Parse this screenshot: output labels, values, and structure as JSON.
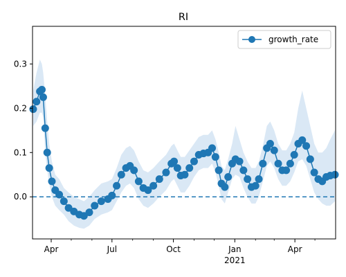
{
  "chart_data": {
    "type": "line",
    "title": "RI",
    "xlabel": "",
    "ylabel": "",
    "x_range": [
      "2020-03-04",
      "2021-06-01"
    ],
    "ylim": [
      -0.095,
      0.385
    ],
    "x_ticks": [
      {
        "date": "2020-04-01",
        "label": "Apr",
        "year_label": ""
      },
      {
        "date": "2020-07-01",
        "label": "Jul",
        "year_label": ""
      },
      {
        "date": "2020-10-01",
        "label": "Oct",
        "year_label": ""
      },
      {
        "date": "2021-01-01",
        "label": "Jan",
        "year_label": "2021"
      },
      {
        "date": "2021-04-01",
        "label": "Apr",
        "year_label": ""
      }
    ],
    "minor_x_ticks": [
      "2020-05-01",
      "2020-06-01",
      "2020-08-01",
      "2020-09-01",
      "2020-11-01",
      "2020-12-01",
      "2021-02-01",
      "2021-03-01",
      "2021-05-01"
    ],
    "y_ticks": [
      0.0,
      0.1,
      0.2,
      0.3
    ],
    "y_tick_labels": [
      "0.0",
      "0.1",
      "0.2",
      "0.3"
    ],
    "reference_line": {
      "y": 0.0,
      "style": "dashed",
      "color": "#1f77b4"
    },
    "grid": false,
    "legend": {
      "position": "upper-right",
      "entries": [
        "growth_rate"
      ]
    },
    "series": [
      {
        "name": "growth_rate",
        "color": "#1f77b4",
        "marker": "circle",
        "band_color": "#dae8f5",
        "points": [
          [
            "2020-03-05",
            0.198,
            0.24,
            0.16
          ],
          [
            "2020-03-10",
            0.215,
            0.28,
            0.17
          ],
          [
            "2020-03-15",
            0.238,
            0.31,
            0.19
          ],
          [
            "2020-03-18",
            0.242,
            0.3,
            0.19
          ],
          [
            "2020-03-20",
            0.225,
            0.28,
            0.18
          ],
          [
            "2020-03-23",
            0.155,
            0.23,
            0.1
          ],
          [
            "2020-03-26",
            0.1,
            0.17,
            0.06
          ],
          [
            "2020-03-29",
            0.065,
            0.12,
            0.03
          ],
          [
            "2020-04-02",
            0.035,
            0.08,
            0.0
          ],
          [
            "2020-04-07",
            0.015,
            0.05,
            -0.02
          ],
          [
            "2020-04-13",
            0.005,
            0.04,
            -0.03
          ],
          [
            "2020-04-20",
            -0.01,
            0.02,
            -0.04
          ],
          [
            "2020-04-27",
            -0.025,
            0.01,
            -0.055
          ],
          [
            "2020-05-05",
            -0.033,
            0.0,
            -0.065
          ],
          [
            "2020-05-13",
            -0.04,
            -0.005,
            -0.07
          ],
          [
            "2020-05-20",
            -0.043,
            -0.01,
            -0.072
          ],
          [
            "2020-05-28",
            -0.035,
            0.0,
            -0.065
          ],
          [
            "2020-06-05",
            -0.02,
            0.015,
            -0.05
          ],
          [
            "2020-06-15",
            -0.01,
            0.03,
            -0.04
          ],
          [
            "2020-06-25",
            -0.005,
            0.035,
            -0.035
          ],
          [
            "2020-07-01",
            0.003,
            0.04,
            -0.03
          ],
          [
            "2020-07-08",
            0.025,
            0.065,
            -0.01
          ],
          [
            "2020-07-15",
            0.05,
            0.095,
            0.01
          ],
          [
            "2020-07-22",
            0.065,
            0.11,
            0.025
          ],
          [
            "2020-07-28",
            0.07,
            0.115,
            0.03
          ],
          [
            "2020-08-03",
            0.06,
            0.105,
            0.02
          ],
          [
            "2020-08-10",
            0.035,
            0.08,
            -0.005
          ],
          [
            "2020-08-17",
            0.02,
            0.06,
            -0.02
          ],
          [
            "2020-08-24",
            0.015,
            0.055,
            -0.025
          ],
          [
            "2020-09-01",
            0.025,
            0.065,
            -0.015
          ],
          [
            "2020-09-10",
            0.04,
            0.08,
            0.0
          ],
          [
            "2020-09-20",
            0.055,
            0.095,
            0.015
          ],
          [
            "2020-09-28",
            0.075,
            0.115,
            0.035
          ],
          [
            "2020-10-02",
            0.08,
            0.12,
            0.04
          ],
          [
            "2020-10-07",
            0.065,
            0.105,
            0.025
          ],
          [
            "2020-10-12",
            0.048,
            0.09,
            0.01
          ],
          [
            "2020-10-18",
            0.05,
            0.09,
            0.01
          ],
          [
            "2020-10-25",
            0.065,
            0.105,
            0.025
          ],
          [
            "2020-11-01",
            0.08,
            0.12,
            0.045
          ],
          [
            "2020-11-08",
            0.095,
            0.135,
            0.06
          ],
          [
            "2020-11-15",
            0.098,
            0.14,
            0.065
          ],
          [
            "2020-11-22",
            0.1,
            0.14,
            0.065
          ],
          [
            "2020-11-28",
            0.11,
            0.15,
            0.075
          ],
          [
            "2020-12-03",
            0.09,
            0.13,
            0.055
          ],
          [
            "2020-12-08",
            0.06,
            0.1,
            0.025
          ],
          [
            "2020-12-12",
            0.03,
            0.07,
            -0.005
          ],
          [
            "2020-12-17",
            0.022,
            0.06,
            -0.015
          ],
          [
            "2020-12-22",
            0.045,
            0.085,
            0.01
          ],
          [
            "2020-12-28",
            0.075,
            0.12,
            0.04
          ],
          [
            "2021-01-02",
            0.085,
            0.16,
            0.05
          ],
          [
            "2021-01-08",
            0.08,
            0.13,
            0.045
          ],
          [
            "2021-01-14",
            0.06,
            0.1,
            0.02
          ],
          [
            "2021-01-20",
            0.04,
            0.08,
            0.0
          ],
          [
            "2021-01-26",
            0.022,
            0.065,
            -0.015
          ],
          [
            "2021-02-01",
            0.025,
            0.065,
            -0.015
          ],
          [
            "2021-02-06",
            0.04,
            0.08,
            0.0
          ],
          [
            "2021-02-12",
            0.075,
            0.115,
            0.035
          ],
          [
            "2021-02-18",
            0.11,
            0.16,
            0.07
          ],
          [
            "2021-02-23",
            0.12,
            0.17,
            0.08
          ],
          [
            "2021-03-01",
            0.105,
            0.15,
            0.065
          ],
          [
            "2021-03-07",
            0.075,
            0.12,
            0.04
          ],
          [
            "2021-03-13",
            0.06,
            0.105,
            0.025
          ],
          [
            "2021-03-19",
            0.06,
            0.105,
            0.025
          ],
          [
            "2021-03-25",
            0.075,
            0.12,
            0.035
          ],
          [
            "2021-03-31",
            0.095,
            0.145,
            0.055
          ],
          [
            "2021-04-06",
            0.12,
            0.2,
            0.08
          ],
          [
            "2021-04-12",
            0.128,
            0.24,
            0.085
          ],
          [
            "2021-04-18",
            0.115,
            0.2,
            0.07
          ],
          [
            "2021-04-24",
            0.085,
            0.16,
            0.04
          ],
          [
            "2021-04-30",
            0.055,
            0.12,
            0.01
          ],
          [
            "2021-05-06",
            0.04,
            0.1,
            -0.005
          ],
          [
            "2021-05-12",
            0.035,
            0.1,
            -0.015
          ],
          [
            "2021-05-18",
            0.045,
            0.11,
            -0.02
          ],
          [
            "2021-05-24",
            0.048,
            0.13,
            -0.02
          ],
          [
            "2021-05-31",
            0.05,
            0.15,
            -0.01
          ]
        ]
      }
    ]
  }
}
